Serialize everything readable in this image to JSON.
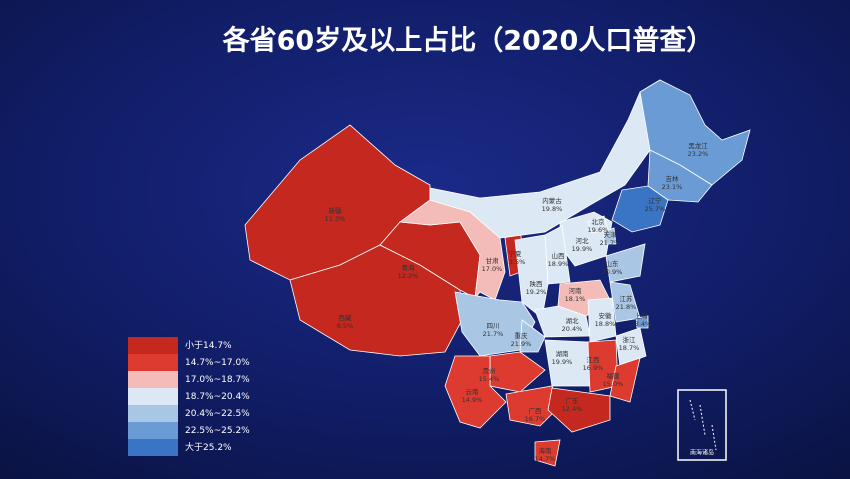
{
  "chart_data": {
    "type": "map",
    "title": "各省60岁及以上占比（2020人口普查）",
    "categories": [
      "新疆",
      "西藏",
      "青海",
      "甘肃",
      "宁夏",
      "内蒙古",
      "黑龙江",
      "吉林",
      "辽宁",
      "河北",
      "北京",
      "天津",
      "山西",
      "陕西",
      "山东",
      "河南",
      "江苏",
      "上海",
      "安徽",
      "浙江",
      "湖北",
      "四川",
      "重庆",
      "贵州",
      "湖南",
      "江西",
      "福建",
      "云南",
      "广西",
      "广东",
      "海南"
    ],
    "values": [
      11.3,
      8.5,
      12.2,
      17.0,
      13.5,
      19.8,
      23.2,
      23.1,
      25.7,
      19.9,
      19.6,
      21.7,
      18.9,
      19.2,
      20.9,
      18.1,
      21.8,
      23.4,
      18.8,
      18.7,
      20.4,
      21.7,
      21.9,
      15.4,
      19.9,
      16.9,
      15.0,
      14.9,
      16.7,
      12.4,
      14.7
    ],
    "value_labels": [
      "11.3%",
      "8.5%",
      "12.2%",
      "17.0%",
      "13.5%",
      "19.8%",
      "23.2%",
      "23.1%",
      "25.7%",
      "19.9%",
      "19.6%",
      "21.7%",
      "18.9%",
      "19.2%",
      "20.9%",
      "18.1%",
      "21.8%",
      "23.4%",
      "18.8%",
      "18.7%",
      "20.4%",
      "21.7%",
      "21.9%",
      "15.4%",
      "19.9%",
      "16.9%",
      "15.0%",
      "14.9%",
      "16.7%",
      "12.4%",
      "14.7%"
    ],
    "colors": [
      "#c4281f",
      "#c4281f",
      "#c4281f",
      "#f4bcb8",
      "#c4281f",
      "#dce8f4",
      "#6a9bd4",
      "#6a9bd4",
      "#3a74c4",
      "#dce8f4",
      "#dce8f4",
      "#a9c6e5",
      "#dce8f4",
      "#dce8f4",
      "#a9c6e5",
      "#f4bcb8",
      "#a9c6e5",
      "#6a9bd4",
      "#dce8f4",
      "#dce8f4",
      "#dce8f4",
      "#a9c6e5",
      "#a9c6e5",
      "#dd3b2f",
      "#dce8f4",
      "#dd3b2f",
      "#dd3b2f",
      "#dd3b2f",
      "#dd3b2f",
      "#c4281f",
      "#dd3b2f"
    ],
    "legend": {
      "position": "bottom-left",
      "labels": [
        "小于14.7%",
        "14.7%~17.0%",
        "17.0%~18.7%",
        "18.7%~20.4%",
        "20.4%~22.5%",
        "22.5%~25.2%",
        "大于25.2%"
      ],
      "colors": [
        "#c4281f",
        "#dd3b2f",
        "#f4bcb8",
        "#dce8f4",
        "#a9c6e5",
        "#6a9bd4",
        "#3a74c4"
      ]
    },
    "inset_label": "南海诸岛"
  }
}
